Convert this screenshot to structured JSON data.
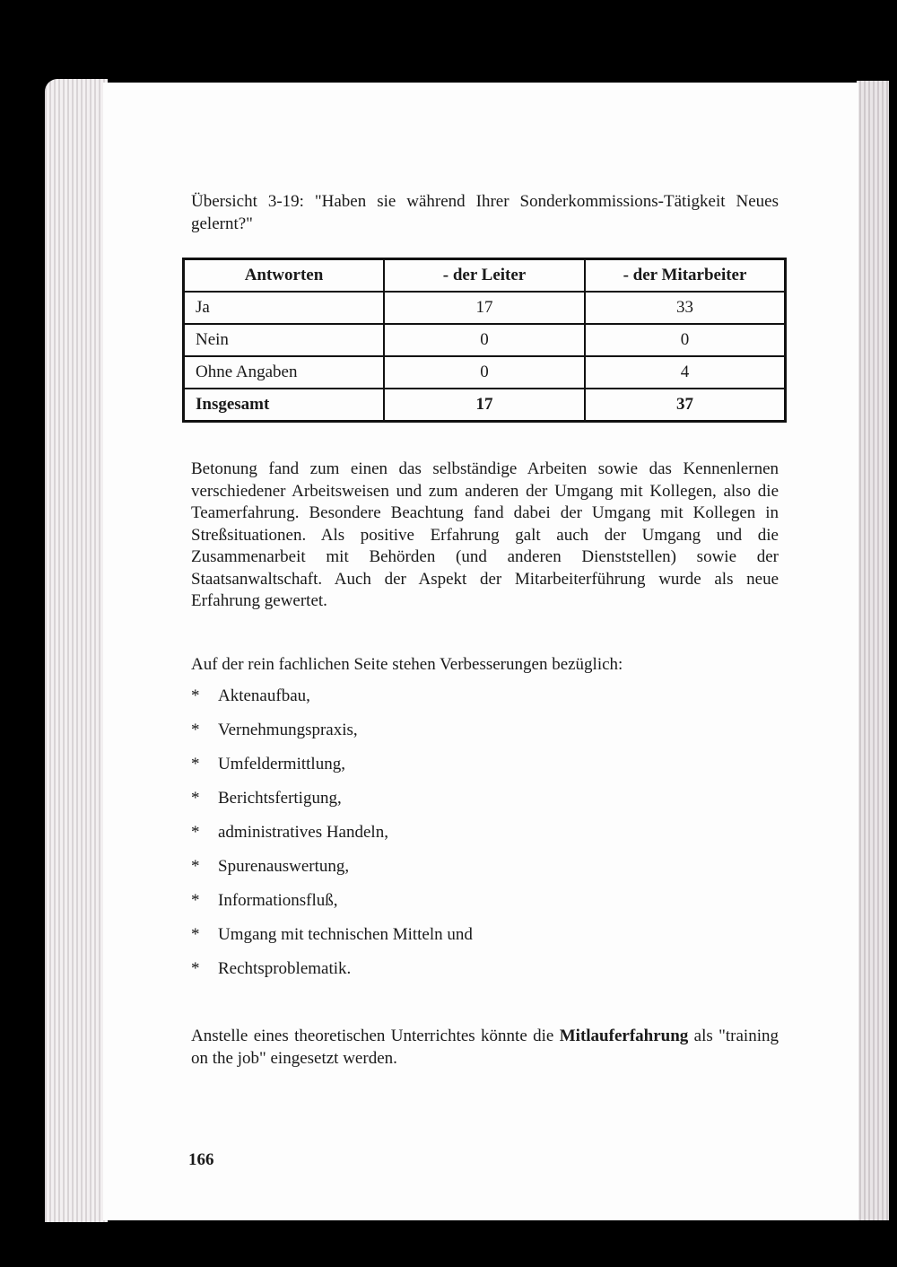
{
  "caption": "Übersicht 3-19: \"Haben sie während Ihrer Sonderkommissions-Tätigkeit Neues gelernt?\"",
  "table": {
    "headers": [
      "Antworten",
      "- der Leiter",
      "- der Mitarbeiter"
    ],
    "rows": [
      [
        "Ja",
        "17",
        "33"
      ],
      [
        "Nein",
        "0",
        "0"
      ],
      [
        "Ohne Angaben",
        "0",
        "4"
      ]
    ],
    "total": [
      "Insgesamt",
      "17",
      "37"
    ]
  },
  "paragraph1": "Betonung fand zum einen das selbständige Arbeiten sowie das Kennenlernen verschiedener Arbeitsweisen und zum anderen der Umgang mit Kollegen, also die Teamerfahrung. Besondere Beachtung fand dabei der Umgang mit Kollegen in Streßsituationen. Als positive Erfahrung galt auch der Umgang und die Zusammenarbeit mit Behörden (und anderen Dienststellen) sowie der Staatsanwaltschaft. Auch der Aspekt der Mitarbeiterführung wurde als neue Erfahrung gewertet.",
  "list_intro": "Auf der rein fachlichen Seite stehen Verbesserungen bezüglich:",
  "bullet_symbol": "*",
  "list": [
    "Aktenaufbau,",
    "Vernehmungspraxis,",
    "Umfeldermittlung,",
    "Berichtsfertigung,",
    "administratives Handeln,",
    "Spurenauswertung,",
    "Informationsfluß,",
    "Umgang mit technischen Mitteln und",
    "Rechtsproblematik."
  ],
  "closing": {
    "before": "Anstelle eines theoretischen Unterrichtes könnte die ",
    "bold": "Mitlauferfahrung",
    "after": " als \"training on the job\" eingesetzt werden."
  },
  "page_number": "166"
}
